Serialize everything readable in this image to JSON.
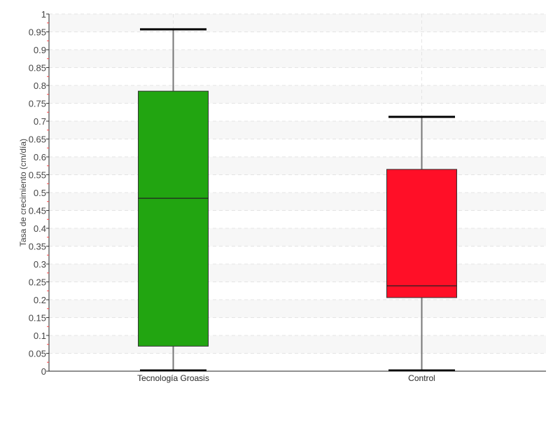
{
  "chart_data": {
    "type": "boxplot",
    "title": "",
    "xlabel": "",
    "ylabel": "Tasa de crecimiento (cm/día)",
    "ylim": [
      0,
      1
    ],
    "ytick_step": 0.05,
    "yticks": [
      "0",
      "0.05",
      "0.1",
      "0.15",
      "0.2",
      "0.25",
      "0.3",
      "0.35",
      "0.4",
      "0.45",
      "0.5",
      "0.55",
      "0.6",
      "0.65",
      "0.7",
      "0.75",
      "0.8",
      "0.85",
      "0.9",
      "0.95",
      "1"
    ],
    "grid": true,
    "categories": [
      "Tecnología Groasis",
      "Control"
    ],
    "series": [
      {
        "category": "Tecnología Groasis",
        "color": "#22a511",
        "min": 0.0,
        "q1": 0.07,
        "median": 0.484,
        "q3": 0.784,
        "max": 0.957
      },
      {
        "category": "Control",
        "color": "#ff0f27",
        "min": 0.0,
        "q1": 0.206,
        "median": 0.239,
        "q3": 0.565,
        "max": 0.712
      }
    ]
  }
}
